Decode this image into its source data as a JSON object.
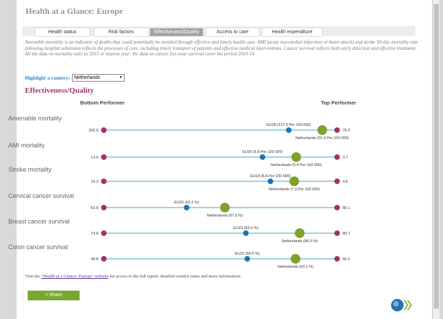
{
  "header": {
    "title": "Health at a Glance: Europe"
  },
  "tabs": [
    "Health status",
    "Risk factors",
    "Effectiveness/Quality",
    "Access to care",
    "Health expenditure"
  ],
  "active_tab": 2,
  "description": [
    "Amenable mortality is an indicator of deaths that could potentially be avoided through effective and timely health care. AMI (acute myocardial infarction or heart attack) and stroke 30-day mortality rate following hospital admission reflects the processes of care, including timely transport of patients and effective medical interventions. Cancer survival reflects both early detection and effective treatment.",
    "All the data on mortality refer to 2015 or nearest year; the data on cancer five-year survival cover the period 2010-14."
  ],
  "highlight": {
    "label": "Highlight a country:",
    "selected": "Netherlands"
  },
  "chart_data": {
    "type": "dotplot",
    "title": "Effectiveness/Quality",
    "left_header": "Bottom Performer",
    "right_header": "Top Performer",
    "colors": {
      "line": "#3aa6c5",
      "ends": "#a0336a",
      "eu": "#1b75b5",
      "highlight": "#7fa32a"
    },
    "rows": [
      {
        "name": "Amenable mortality",
        "bottom": 326,
        "bottom_label": "326.0",
        "top": 75,
        "top_label": "75.0",
        "eu": 127,
        "eu_label": "EU28 (127.0 Per 100 000)",
        "country": 91,
        "country_label": "Netherlands (91.0 Per 100 000)"
      },
      {
        "name": "AMI mortality",
        "bottom": 13.4,
        "bottom_label": "13.4",
        "top": 3.7,
        "top_label": "3.7",
        "eu": 6.8,
        "eu_label": "EU20 (6.8 Per 100 000)",
        "country": 5.4,
        "country_label": "Netherlands (5.4 Per 100 000)"
      },
      {
        "name": "Stroke mortality",
        "bottom": 19.3,
        "bottom_label": "19.3",
        "top": 4.6,
        "top_label": "4.6",
        "eu": 8.8,
        "eu_label": "EU18 (8.8 Per 100 000)",
        "country": 7.3,
        "country_label": "Netherlands (7.3 Per 100 000)"
      },
      {
        "name": "Cervical cancer survival",
        "bottom": 53.9,
        "bottom_label": "53.9",
        "top": 80.1,
        "top_label": "80.1",
        "eu": 63.2,
        "eu_label": "EU23 (63.2 %)",
        "country": 67.5,
        "country_label": "Netherlands (67.5 %)"
      },
      {
        "name": "Breast cancer survival",
        "bottom": 73.5,
        "bottom_label": "73.5",
        "top": 89.1,
        "top_label": "89.1",
        "eu": 83.0,
        "eu_label": "EU23 (83.0 %)",
        "country": 86.6,
        "country_label": "Netherlands (86.6 %)"
      },
      {
        "name": "Colon cancer survival",
        "bottom": 48.8,
        "bottom_label": "48.8",
        "top": 66.2,
        "top_label": "66.2",
        "eu": 59.5,
        "eu_label": "EU23 (59.5 %)",
        "country": 63.1,
        "country_label": "Netherlands (63.1 %)"
      }
    ]
  },
  "footer": {
    "before": "Visit the ",
    "link": "\"Health at a Glance: Europe\" website",
    "after": " for access to the full report, detailed country notes and more information."
  },
  "share": "Share"
}
